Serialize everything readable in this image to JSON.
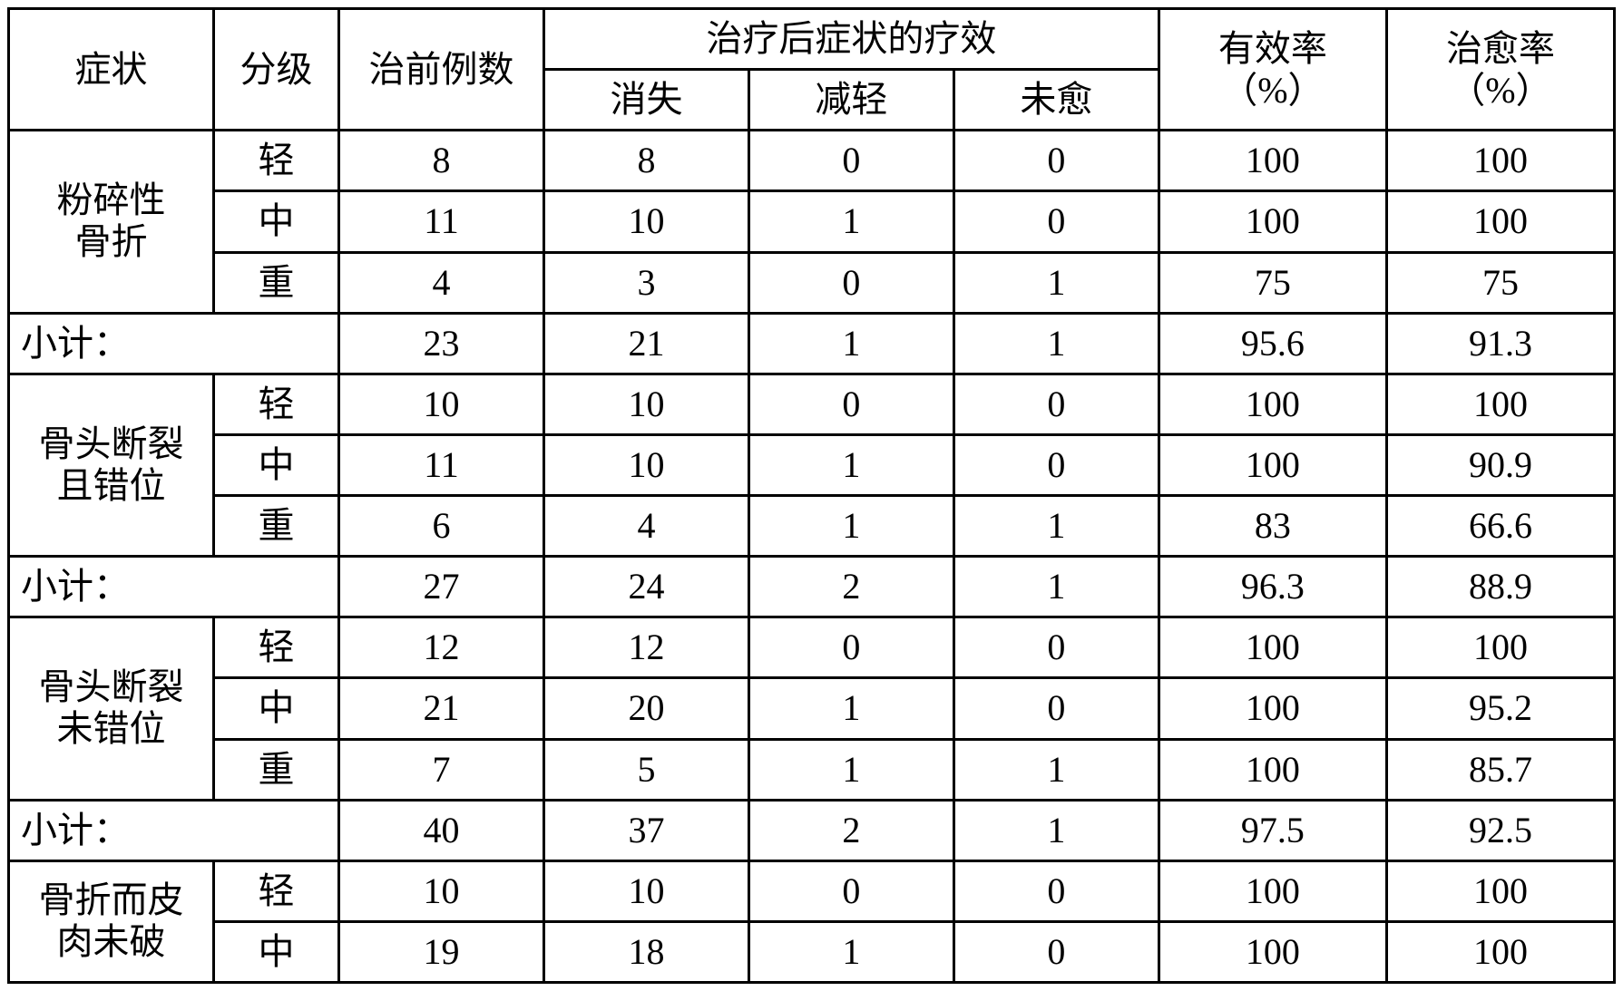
{
  "table": {
    "type": "table",
    "border_color": "#000000",
    "border_width": 3,
    "background_color": "#ffffff",
    "text_color": "#000000",
    "font_family": "SimSun",
    "font_size_pt": 30,
    "header": {
      "symptom": "症状",
      "grade": "分级",
      "pre_count": "治前例数",
      "post_effect": "治疗后症状的疗效",
      "post_sub": {
        "gone": "消失",
        "less": "减轻",
        "nocure": "未愈"
      },
      "eff_rate_line1": "有效率",
      "eff_rate_line2": "（%）",
      "cure_rate_line1": "治愈率",
      "cure_rate_line2": "（%）"
    },
    "groups": [
      {
        "name_line1": "粉碎性",
        "name_line2": "骨折",
        "rows": [
          {
            "grade": "轻",
            "pre": "8",
            "gone": "8",
            "less": "0",
            "nocure": "0",
            "eff": "100",
            "cure": "100"
          },
          {
            "grade": "中",
            "pre": "11",
            "gone": "10",
            "less": "1",
            "nocure": "0",
            "eff": "100",
            "cure": "100"
          },
          {
            "grade": "重",
            "pre": "4",
            "gone": "3",
            "less": "0",
            "nocure": "1",
            "eff": "75",
            "cure": "75"
          }
        ],
        "subtotal": {
          "label": "小计：",
          "pre": "23",
          "gone": "21",
          "less": "1",
          "nocure": "1",
          "eff": "95.6",
          "cure": "91.3"
        }
      },
      {
        "name_line1": "骨头断裂",
        "name_line2": "且错位",
        "rows": [
          {
            "grade": "轻",
            "pre": "10",
            "gone": "10",
            "less": "0",
            "nocure": "0",
            "eff": "100",
            "cure": "100"
          },
          {
            "grade": "中",
            "pre": "11",
            "gone": "10",
            "less": "1",
            "nocure": "0",
            "eff": "100",
            "cure": "90.9"
          },
          {
            "grade": "重",
            "pre": "6",
            "gone": "4",
            "less": "1",
            "nocure": "1",
            "eff": "83",
            "cure": "66.6"
          }
        ],
        "subtotal": {
          "label": "小计：",
          "pre": "27",
          "gone": "24",
          "less": "2",
          "nocure": "1",
          "eff": "96.3",
          "cure": "88.9"
        }
      },
      {
        "name_line1": "骨头断裂",
        "name_line2": "未错位",
        "rows": [
          {
            "grade": "轻",
            "pre": "12",
            "gone": "12",
            "less": "0",
            "nocure": "0",
            "eff": "100",
            "cure": "100"
          },
          {
            "grade": "中",
            "pre": "21",
            "gone": "20",
            "less": "1",
            "nocure": "0",
            "eff": "100",
            "cure": "95.2"
          },
          {
            "grade": "重",
            "pre": "7",
            "gone": "5",
            "less": "1",
            "nocure": "1",
            "eff": "100",
            "cure": "85.7"
          }
        ],
        "subtotal": {
          "label": "小计：",
          "pre": "40",
          "gone": "37",
          "less": "2",
          "nocure": "1",
          "eff": "97.5",
          "cure": "92.5"
        }
      },
      {
        "name_line1": "骨折而皮",
        "name_line2": "肉未破",
        "rows": [
          {
            "grade": "轻",
            "pre": "10",
            "gone": "10",
            "less": "0",
            "nocure": "0",
            "eff": "100",
            "cure": "100"
          },
          {
            "grade": "中",
            "pre": "19",
            "gone": "18",
            "less": "1",
            "nocure": "0",
            "eff": "100",
            "cure": "100"
          }
        ]
      }
    ],
    "column_widths_pct": [
      12.6,
      7.7,
      12.6,
      12.6,
      12.6,
      12.6,
      14.0,
      14.0
    ]
  }
}
